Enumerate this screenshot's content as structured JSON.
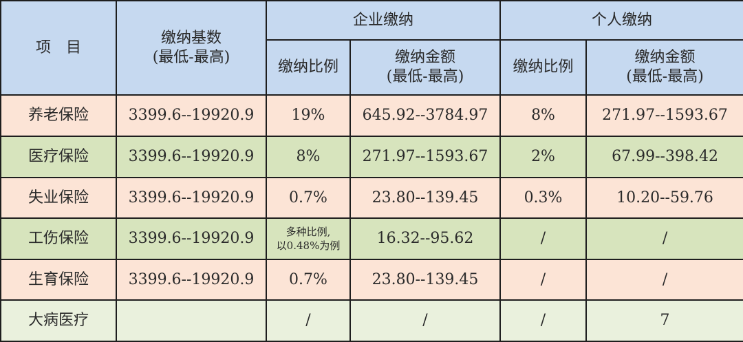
{
  "header": {
    "item": "项　目",
    "base_line1": "缴纳基数",
    "base_line2": "(最低-最高)",
    "company": "企业缴纳",
    "personal": "个人缴纳",
    "company_ratio": "缴纳比例",
    "company_amount_line1": "缴纳金额",
    "company_amount_line2": "(最低-最高)",
    "personal_ratio": "缴纳比例",
    "personal_amount_line1": "缴纳金额",
    "personal_amount_line2": "(最低-最高)"
  },
  "rows": [
    {
      "name": "养老保险",
      "base": "3399.6--19920.9",
      "c_ratio": "19%",
      "c_amount": "645.92--3784.97",
      "p_ratio": "8%",
      "p_amount": "271.97--1593.67"
    },
    {
      "name": "医疗保险",
      "base": "3399.6--19920.9",
      "c_ratio": "8%",
      "c_amount": "271.97--1593.67",
      "p_ratio": "2%",
      "p_amount": "67.99--398.42"
    },
    {
      "name": "失业保险",
      "base": "3399.6--19920.9",
      "c_ratio": "0.7%",
      "c_amount": "23.80--139.45",
      "p_ratio": "0.3%",
      "p_amount": "10.20--59.76"
    },
    {
      "name": "工伤保险",
      "base": "3399.6--19920.9",
      "c_ratio_line1": "多种比例,",
      "c_ratio_line2": "以0.48%为例",
      "c_amount": "16.32--95.62",
      "p_ratio": "/",
      "p_amount": "/"
    },
    {
      "name": "生育保险",
      "base": "3399.6--19920.9",
      "c_ratio": "0.7%",
      "c_amount": "23.80--139.45",
      "p_ratio": "/",
      "p_amount": "/"
    },
    {
      "name": "大病医疗",
      "base": "",
      "c_ratio": "/",
      "c_amount": "/",
      "p_ratio": "/",
      "p_amount": "7"
    }
  ],
  "colors": {
    "header": "#c6d9f0",
    "pink_row": "#fce4d6",
    "green_row": "#d7e4bd",
    "light_green_row": "#eaf1dd"
  }
}
